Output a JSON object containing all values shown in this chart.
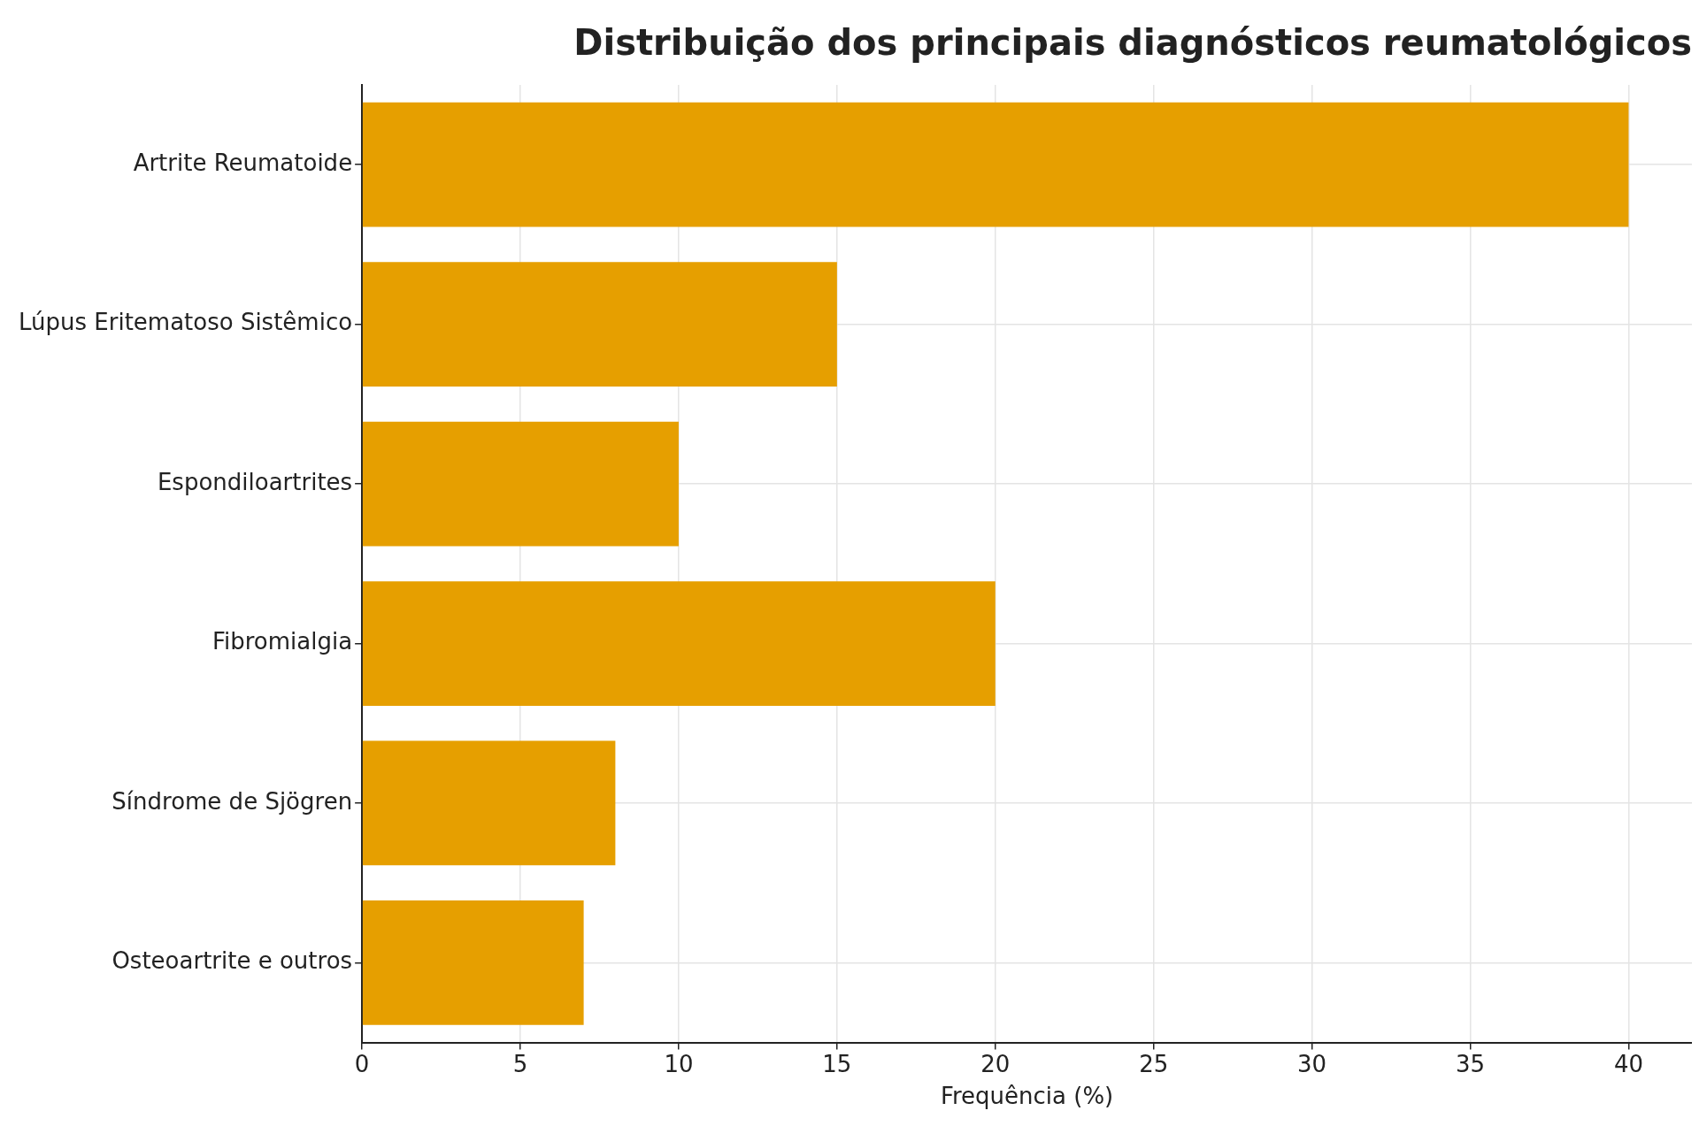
{
  "chart_data": {
    "type": "bar",
    "orientation": "horizontal",
    "title": "Distribuição dos principais diagnósticos reumatológicos",
    "xlabel": "Frequência (%)",
    "categories": [
      "Artrite Reumatoide",
      "Lúpus Eritematoso Sistêmico",
      "Espondiloartrites",
      "Fibromialgia",
      "Síndrome de Sjögren",
      "Osteoartrite e outros"
    ],
    "values": [
      40,
      15,
      10,
      20,
      8,
      7
    ],
    "color": "#e69f00",
    "xlim": [
      0,
      42
    ],
    "xticks": [
      0,
      5,
      10,
      15,
      20,
      25,
      30,
      35,
      40
    ],
    "grid": true
  }
}
